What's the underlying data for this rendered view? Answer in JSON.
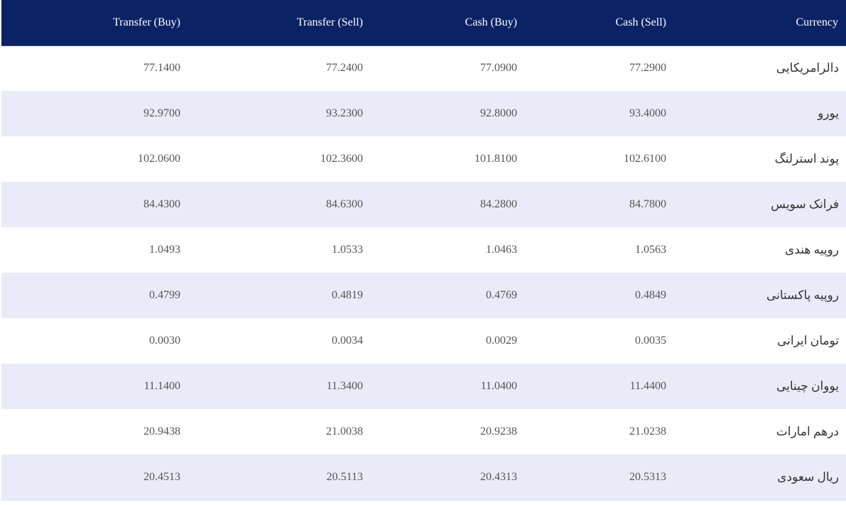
{
  "header": {
    "transfer_buy": "Transfer (Buy)",
    "transfer_sell": "Transfer (Sell)",
    "cash_buy": "Cash (Buy)",
    "cash_sell": "Cash (Sell)",
    "currency": "Currency"
  },
  "colors": {
    "header_bg": "#0b2265",
    "header_text": "#ffffff",
    "row_alt_bg": "#e9ebf8",
    "row_bg": "#ffffff"
  },
  "rows": [
    {
      "transfer_buy": "77.1400",
      "transfer_sell": "77.2400",
      "cash_buy": "77.0900",
      "cash_sell": "77.2900",
      "currency": "دالرامریکایی"
    },
    {
      "transfer_buy": "92.9700",
      "transfer_sell": "93.2300",
      "cash_buy": "92.8000",
      "cash_sell": "93.4000",
      "currency": "یورو"
    },
    {
      "transfer_buy": "102.0600",
      "transfer_sell": "102.3600",
      "cash_buy": "101.8100",
      "cash_sell": "102.6100",
      "currency": "پوند استرلنگ"
    },
    {
      "transfer_buy": "84.4300",
      "transfer_sell": "84.6300",
      "cash_buy": "84.2800",
      "cash_sell": "84.7800",
      "currency": "فرانک سویس"
    },
    {
      "transfer_buy": "1.0493",
      "transfer_sell": "1.0533",
      "cash_buy": "1.0463",
      "cash_sell": "1.0563",
      "currency": "روپیه هندی"
    },
    {
      "transfer_buy": "0.4799",
      "transfer_sell": "0.4819",
      "cash_buy": "0.4769",
      "cash_sell": "0.4849",
      "currency": "روپیه پاکستانی"
    },
    {
      "transfer_buy": "0.0030",
      "transfer_sell": "0.0034",
      "cash_buy": "0.0029",
      "cash_sell": "0.0035",
      "currency": "تومان ایرانی"
    },
    {
      "transfer_buy": "11.1400",
      "transfer_sell": "11.3400",
      "cash_buy": "11.0400",
      "cash_sell": "11.4400",
      "currency": "یووان چینایی"
    },
    {
      "transfer_buy": "20.9438",
      "transfer_sell": "21.0038",
      "cash_buy": "20.9238",
      "cash_sell": "21.0238",
      "currency": "درهم امارات"
    },
    {
      "transfer_buy": "20.4513",
      "transfer_sell": "20.5113",
      "cash_buy": "20.4313",
      "cash_sell": "20.5313",
      "currency": "ریال سعودی"
    }
  ]
}
